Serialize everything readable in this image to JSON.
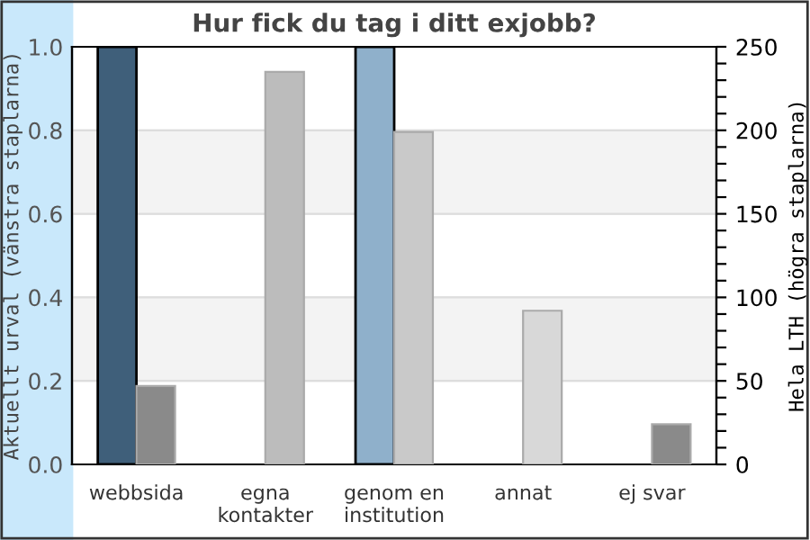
{
  "chart_data": {
    "type": "bar",
    "title": "Hur fick du tag i ditt exjobb?",
    "ylabel": "Aktuellt urval (vänstra staplarna)",
    "y2label": "Hela LTH (högra staplarna)",
    "categories": [
      "webbsida",
      "egna\nkontakter",
      "genom en\ninstitution",
      "annat",
      "ej svar"
    ],
    "series": [
      {
        "colors": [
          "#3f5f7a",
          null,
          "#8fb0cb",
          null,
          null
        ],
        "values": [
          1.0,
          null,
          1.0,
          null,
          null
        ]
      },
      {
        "axis": "y2",
        "colors": [
          "#8a8a8a",
          "#bcbcbc",
          "#c9c9c9",
          "#d8d8d8",
          "#8a8a8a"
        ],
        "values": [
          47,
          235,
          199,
          92,
          24
        ]
      }
    ],
    "ylim": [
      0,
      1.0
    ],
    "yticks": [
      {
        "value": 0,
        "label": "0.0"
      },
      {
        "value": 0.2,
        "label": "0.2"
      },
      {
        "value": 0.4,
        "label": "0.4"
      },
      {
        "value": 0.6,
        "label": "0.6"
      },
      {
        "value": 0.8,
        "label": "0.8"
      },
      {
        "value": 1.0,
        "label": "1.0"
      }
    ],
    "y2lim": [
      0,
      250
    ],
    "y2ticks": [
      0,
      {
        "value": 10,
        "label": null
      },
      {
        "value": 20,
        "label": null
      },
      {
        "value": 30,
        "label": null
      },
      {
        "value": 40,
        "label": null
      },
      50,
      {
        "value": 60,
        "label": null
      },
      {
        "value": 70,
        "label": null
      },
      {
        "value": 80,
        "label": null
      },
      {
        "value": 90,
        "label": null
      },
      100,
      {
        "value": 110,
        "label": null
      },
      {
        "value": 120,
        "label": null
      },
      {
        "value": 130,
        "label": null
      },
      {
        "value": 140,
        "label": null
      },
      150,
      {
        "value": 160,
        "label": null
      },
      {
        "value": 170,
        "label": null
      },
      {
        "value": 180,
        "label": null
      },
      {
        "value": 190,
        "label": null
      },
      200,
      {
        "value": 210,
        "label": null
      },
      {
        "value": 220,
        "label": null
      },
      {
        "value": 230,
        "label": null
      },
      {
        "value": 240,
        "label": null
      },
      250
    ],
    "bands": [
      {
        "axis": "y",
        "from": 0.2,
        "to": 0.4,
        "color": "#f3f3f3"
      },
      {
        "axis": "y",
        "from": 0.6,
        "to": 0.8,
        "color": "#f3f3f3"
      }
    ],
    "grid": "y",
    "legend": false
  }
}
